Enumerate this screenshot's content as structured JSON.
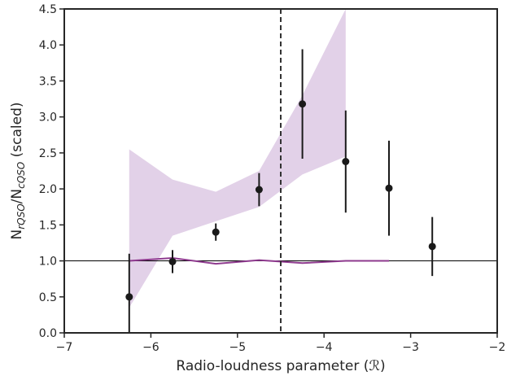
{
  "chart_data": {
    "type": "scatter",
    "xlabel": "Radio-loudness parameter (ℛ)",
    "ylabel_main": "N",
    "ylabel_sub1": "rQSO",
    "ylabel_mid": "/N",
    "ylabel_sub2": "cQSO",
    "ylabel_tail": " (scaled)",
    "xlim": [
      -7,
      -2
    ],
    "ylim": [
      0,
      4.5
    ],
    "xticks": [
      -7,
      -6,
      -5,
      -4,
      -3,
      -2
    ],
    "xtick_labels": [
      "−7",
      "−6",
      "−5",
      "−4",
      "−3",
      "−2"
    ],
    "yticks": [
      0,
      0.5,
      1,
      1.5,
      2,
      2.5,
      3,
      3.5,
      4,
      4.5
    ],
    "ytick_labels": [
      "0.0",
      "0.5",
      "1.0",
      "1.5",
      "2.0",
      "2.5",
      "3.0",
      "3.5",
      "4.0",
      "4.5"
    ],
    "grid": false,
    "reference_line_y": 1.0,
    "vertical_dashed_x": -4.5,
    "points": [
      {
        "x": -6.25,
        "y": 0.5,
        "yerr_low": 0.5,
        "yerr_high": 0.6
      },
      {
        "x": -5.75,
        "y": 0.99,
        "yerr_low": 0.16,
        "yerr_high": 0.16
      },
      {
        "x": -5.25,
        "y": 1.4,
        "yerr_low": 0.12,
        "yerr_high": 0.12
      },
      {
        "x": -4.75,
        "y": 1.99,
        "yerr_low": 0.23,
        "yerr_high": 0.23
      },
      {
        "x": -4.25,
        "y": 3.18,
        "yerr_low": 0.76,
        "yerr_high": 0.76
      },
      {
        "x": -3.75,
        "y": 2.38,
        "yerr_low": 0.71,
        "yerr_high": 0.71
      },
      {
        "x": -3.25,
        "y": 2.01,
        "yerr_low": 0.66,
        "yerr_high": 0.66
      },
      {
        "x": -2.75,
        "y": 1.2,
        "yerr_low": 0.41,
        "yerr_high": 0.41
      }
    ],
    "band": {
      "x": [
        -6.25,
        -5.75,
        -5.25,
        -4.75,
        -4.25,
        -3.75
      ],
      "lower": [
        0.35,
        1.35,
        1.55,
        1.75,
        2.2,
        2.45
      ],
      "upper": [
        2.55,
        2.13,
        1.96,
        2.25,
        3.3,
        4.5
      ],
      "color": "#e2d1e8"
    },
    "purple_line": {
      "x": [
        -6.25,
        -5.75,
        -5.25,
        -4.75,
        -4.25,
        -3.75,
        -3.25
      ],
      "y": [
        1.0,
        1.04,
        0.96,
        1.01,
        0.97,
        1.0,
        1.0
      ],
      "color": "#8e3a8e"
    },
    "colors": {
      "points": "#1a1a1a",
      "reference_line": "#000000",
      "dashed_line": "#333333",
      "axes": "#262626"
    }
  }
}
